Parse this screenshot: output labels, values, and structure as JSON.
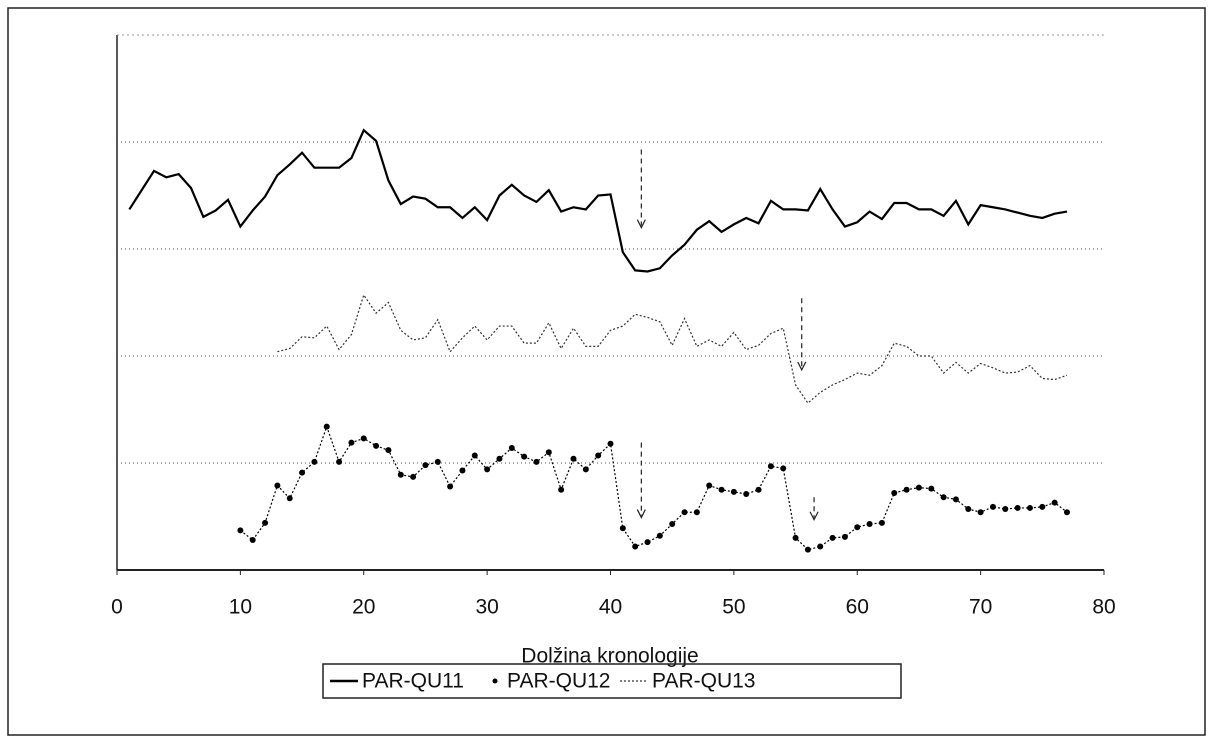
{
  "chart_data": {
    "type": "line",
    "xlabel": "Dolžina kronologije",
    "x": [
      1,
      2,
      3,
      4,
      5,
      6,
      7,
      8,
      9,
      10,
      11,
      12,
      13,
      14,
      15,
      16,
      17,
      18,
      19,
      20,
      21,
      22,
      23,
      24,
      25,
      26,
      27,
      28,
      29,
      30,
      31,
      32,
      33,
      34,
      35,
      36,
      37,
      38,
      39,
      40,
      41,
      42,
      43,
      44,
      45,
      46,
      47,
      48,
      49,
      50,
      51,
      52,
      53,
      54,
      55,
      56,
      57,
      58,
      59,
      60,
      61,
      62,
      63,
      64,
      65,
      66,
      67,
      68,
      69,
      70,
      71,
      72,
      73,
      74,
      75,
      76,
      77
    ],
    "series": [
      {
        "name": "PAR-QU11",
        "color": "#000000",
        "line_style": "solid",
        "marker": "none",
        "values": [
          3.37,
          3.55,
          3.73,
          3.67,
          3.7,
          3.57,
          3.3,
          3.36,
          3.46,
          3.21,
          3.36,
          3.49,
          3.69,
          3.79,
          3.9,
          3.76,
          3.76,
          3.76,
          3.85,
          4.11,
          4.01,
          3.64,
          3.42,
          3.49,
          3.47,
          3.39,
          3.39,
          3.29,
          3.39,
          3.27,
          3.5,
          3.6,
          3.5,
          3.44,
          3.55,
          3.35,
          3.39,
          3.37,
          3.5,
          3.51,
          2.97,
          2.8,
          2.79,
          2.82,
          2.94,
          3.04,
          3.18,
          3.26,
          3.16,
          3.23,
          3.29,
          3.24,
          3.45,
          3.37,
          3.37,
          3.36,
          3.56,
          3.37,
          3.21,
          3.25,
          3.35,
          3.28,
          3.43,
          3.43,
          3.37,
          3.37,
          3.31,
          3.45,
          3.23,
          3.41,
          3.39,
          3.37,
          3.34,
          3.31,
          3.29,
          3.33,
          3.35
        ]
      },
      {
        "name": "PAR-QU12",
        "color": "#000000",
        "line_style": "dotted",
        "marker": "dot",
        "values": [
          null,
          null,
          null,
          null,
          null,
          null,
          null,
          null,
          null,
          0.37,
          0.28,
          0.44,
          0.79,
          0.67,
          0.91,
          1.01,
          1.34,
          1.01,
          1.19,
          1.23,
          1.16,
          1.12,
          0.89,
          0.87,
          0.98,
          1.01,
          0.78,
          0.93,
          1.07,
          0.94,
          1.04,
          1.14,
          1.06,
          1.01,
          1.1,
          0.75,
          1.04,
          0.94,
          1.07,
          1.18,
          0.39,
          0.22,
          0.26,
          0.32,
          0.43,
          0.54,
          0.54,
          0.79,
          0.75,
          0.73,
          0.71,
          0.75,
          0.97,
          0.95,
          0.3,
          0.19,
          0.22,
          0.3,
          0.31,
          0.4,
          0.43,
          0.44,
          0.72,
          0.75,
          0.77,
          0.76,
          0.68,
          0.66,
          0.57,
          0.54,
          0.59,
          0.57,
          0.58,
          0.58,
          0.59,
          0.63,
          0.54
        ]
      },
      {
        "name": "PAR-QU13",
        "color": "#333333",
        "line_style": "dotted",
        "marker": "none",
        "values": [
          null,
          null,
          null,
          null,
          null,
          null,
          null,
          null,
          null,
          null,
          null,
          null,
          2.04,
          2.07,
          2.18,
          2.17,
          2.28,
          2.06,
          2.2,
          2.57,
          2.4,
          2.5,
          2.24,
          2.15,
          2.17,
          2.34,
          2.04,
          2.17,
          2.28,
          2.15,
          2.28,
          2.28,
          2.12,
          2.12,
          2.31,
          2.07,
          2.26,
          2.09,
          2.09,
          2.24,
          2.28,
          2.39,
          2.36,
          2.32,
          2.1,
          2.35,
          2.09,
          2.15,
          2.09,
          2.22,
          2.06,
          2.1,
          2.21,
          2.26,
          1.73,
          1.56,
          1.66,
          1.73,
          1.78,
          1.84,
          1.82,
          1.91,
          2.12,
          2.09,
          2.0,
          2.0,
          1.84,
          1.94,
          1.84,
          1.93,
          1.89,
          1.84,
          1.85,
          1.91,
          1.79,
          1.78,
          1.82
        ]
      }
    ],
    "arrows": [
      {
        "x": 42.5,
        "y_start": 3.93,
        "y_end": 3.2
      },
      {
        "x": 55.5,
        "y_start": 2.54,
        "y_end": 1.87
      },
      {
        "x": 42.5,
        "y_start": 1.19,
        "y_end": 0.49
      },
      {
        "x": 56.5,
        "y_start": 0.68,
        "y_end": 0.47
      }
    ],
    "xlim": [
      0,
      80
    ],
    "xticks": [
      0,
      10,
      20,
      30,
      40,
      50,
      60,
      70,
      80
    ],
    "ylim": [
      0,
      5
    ],
    "yticks": [
      1,
      2,
      3,
      4
    ],
    "y_tick_labels": false,
    "grid": true,
    "legend": "bottom"
  }
}
